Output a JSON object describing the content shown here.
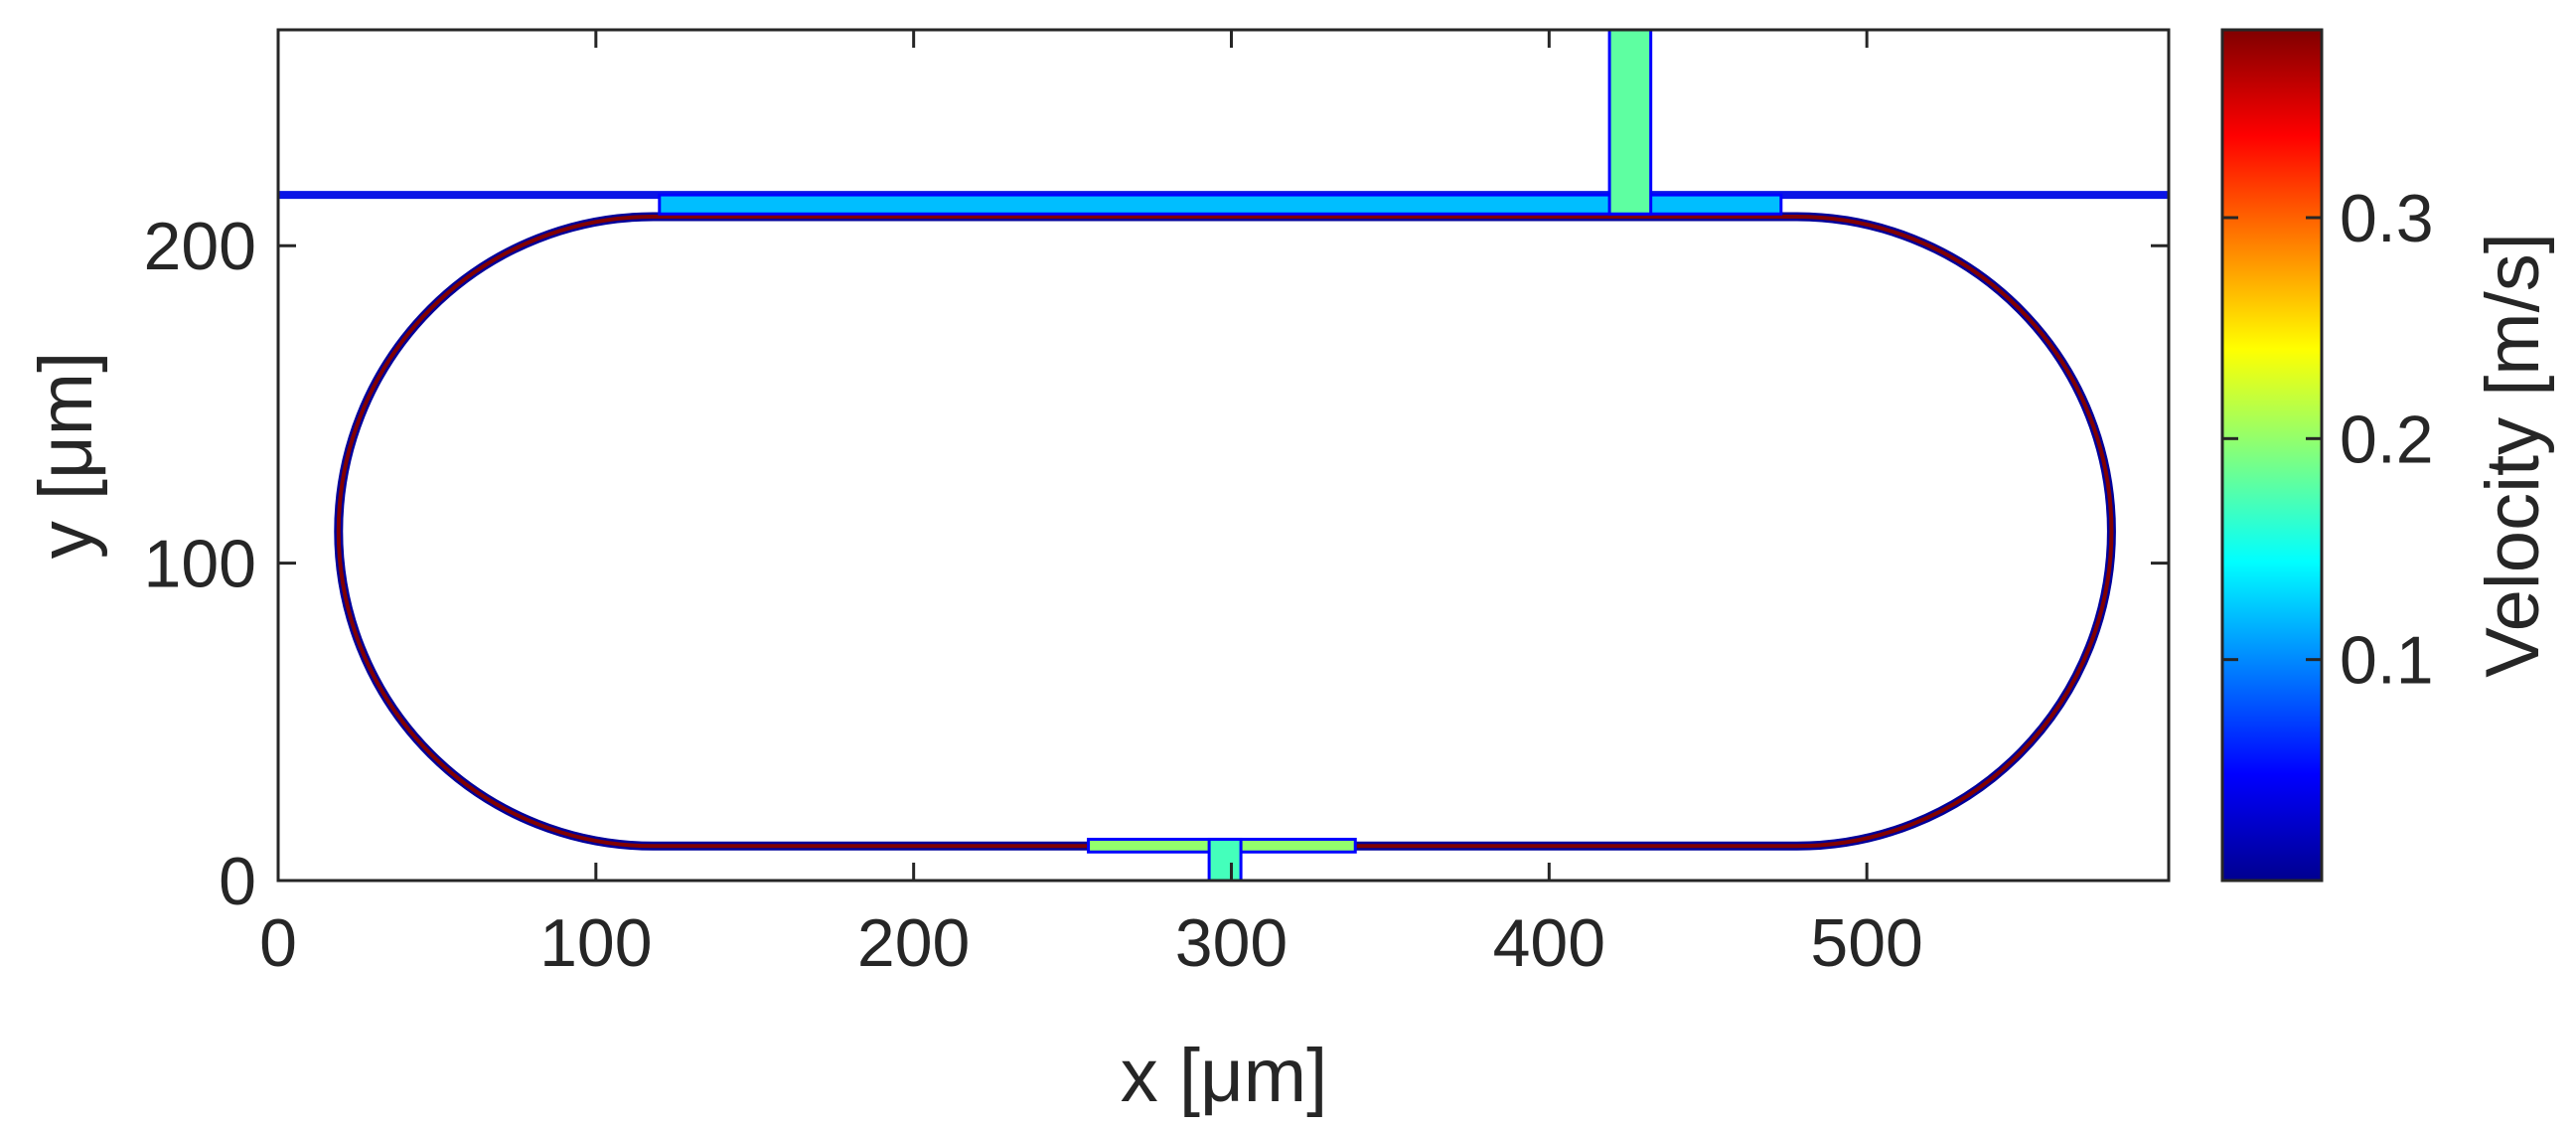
{
  "chart_data": {
    "type": "heatmap",
    "title": "",
    "xlabel": "x [μm]",
    "ylabel": "y [μm]",
    "xlim": [
      0,
      595
    ],
    "ylim": [
      0,
      268
    ],
    "x_ticks": [
      0,
      100,
      200,
      300,
      400,
      500
    ],
    "y_ticks": [
      0,
      100,
      200
    ],
    "x_tick_labels": [
      "0",
      "100",
      "200",
      "300",
      "400",
      "500"
    ],
    "y_tick_labels": [
      "0",
      "100",
      "200"
    ],
    "grid": false,
    "colormap": "jet",
    "colorbar": {
      "label": "Velocity [m/s]",
      "clim": [
        0,
        0.385
      ],
      "ticks": [
        0.1,
        0.2,
        0.3
      ],
      "tick_labels": [
        "0.1",
        "0.2",
        "0.3"
      ]
    },
    "geometry": {
      "bus_waveguide": {
        "y": 216,
        "x_range": [
          0,
          595
        ],
        "velocity": 0.02
      },
      "top_channel": {
        "x_range": [
          120,
          473
        ],
        "y_range": [
          210,
          216
        ],
        "velocity": 0.12
      },
      "top_inlet": {
        "x_range": [
          419,
          432
        ],
        "y_range": [
          210,
          268
        ],
        "velocity": 0.18
      },
      "ring": {
        "straight_x_range": [
          118,
          478
        ],
        "center_y": 110,
        "radius": 99,
        "wall_velocity": 0.385
      },
      "bottom_channel": {
        "x_range": [
          255,
          339
        ],
        "y_range": [
          9,
          13
        ],
        "velocity": 0.2
      },
      "bottom_outlet": {
        "x_range": [
          293,
          303
        ],
        "y_range": [
          0,
          13
        ],
        "velocity": 0.17
      }
    }
  }
}
